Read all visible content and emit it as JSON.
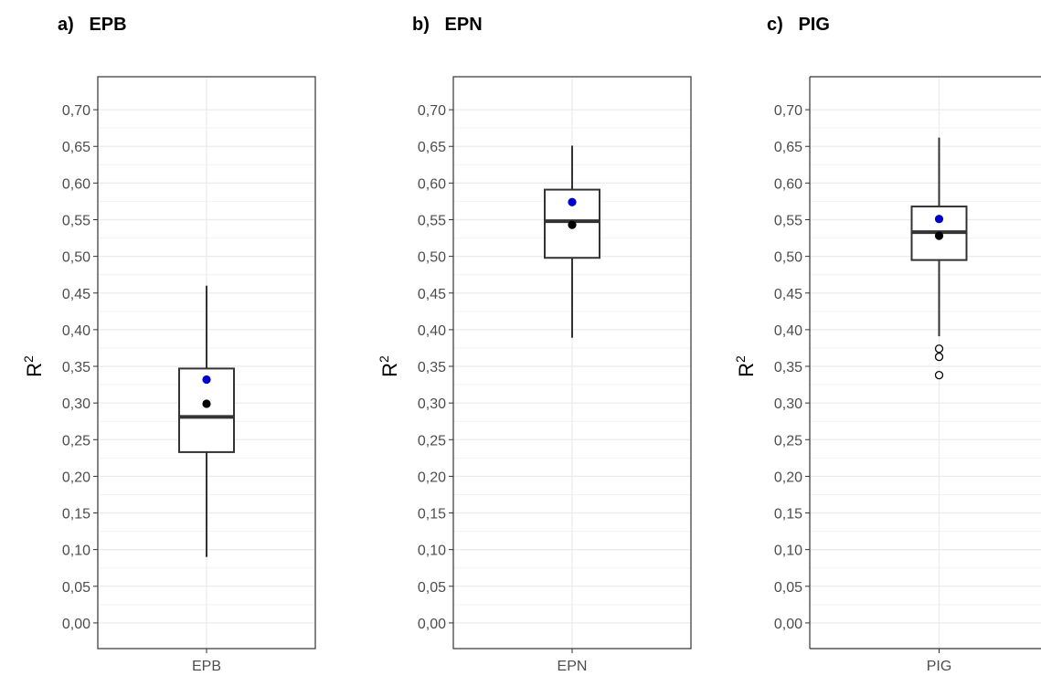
{
  "panel_titles": [
    "a)   EPB",
    "b)   EPN",
    "c)   PIG"
  ],
  "chart_data": [
    {
      "type": "box",
      "title": "a)   EPB",
      "xlabel": "",
      "ylabel": "R2",
      "categories": [
        "EPB"
      ],
      "ylim": [
        -0.035,
        0.745
      ],
      "yticks": [
        "0,00",
        "0,05",
        "0,10",
        "0,15",
        "0,20",
        "0,25",
        "0,30",
        "0,35",
        "0,40",
        "0,45",
        "0,50",
        "0,55",
        "0,60",
        "0,65",
        "0,70"
      ],
      "grid": true,
      "box": {
        "whisker_low": 0.09,
        "q1": 0.233,
        "median": 0.281,
        "q3": 0.347,
        "whisker_high": 0.46
      },
      "outliers": [],
      "mean_black": 0.299,
      "mean_blue": 0.332,
      "colors": {
        "black_point": "#000000",
        "blue_point": "#0000cc"
      }
    },
    {
      "type": "box",
      "title": "b)   EPN",
      "xlabel": "",
      "ylabel": "R2",
      "categories": [
        "EPN"
      ],
      "ylim": [
        -0.035,
        0.745
      ],
      "yticks": [
        "0,00",
        "0,05",
        "0,10",
        "0,15",
        "0,20",
        "0,25",
        "0,30",
        "0,35",
        "0,40",
        "0,45",
        "0,50",
        "0,55",
        "0,60",
        "0,65",
        "0,70"
      ],
      "grid": true,
      "box": {
        "whisker_low": 0.389,
        "q1": 0.498,
        "median": 0.548,
        "q3": 0.591,
        "whisker_high": 0.651
      },
      "outliers": [],
      "mean_black": 0.543,
      "mean_blue": 0.574,
      "colors": {
        "black_point": "#000000",
        "blue_point": "#0000cc"
      }
    },
    {
      "type": "box",
      "title": "c)   PIG",
      "xlabel": "",
      "ylabel": "R2",
      "categories": [
        "PIG"
      ],
      "ylim": [
        -0.035,
        0.745
      ],
      "yticks": [
        "0,00",
        "0,05",
        "0,10",
        "0,15",
        "0,20",
        "0,25",
        "0,30",
        "0,35",
        "0,40",
        "0,45",
        "0,50",
        "0,55",
        "0,60",
        "0,65",
        "0,70"
      ],
      "grid": true,
      "box": {
        "whisker_low": 0.391,
        "q1": 0.495,
        "median": 0.533,
        "q3": 0.568,
        "whisker_high": 0.662
      },
      "outliers": [
        0.338,
        0.363,
        0.374
      ],
      "mean_black": 0.528,
      "mean_blue": 0.551,
      "colors": {
        "black_point": "#000000",
        "blue_point": "#0000cc"
      }
    }
  ]
}
